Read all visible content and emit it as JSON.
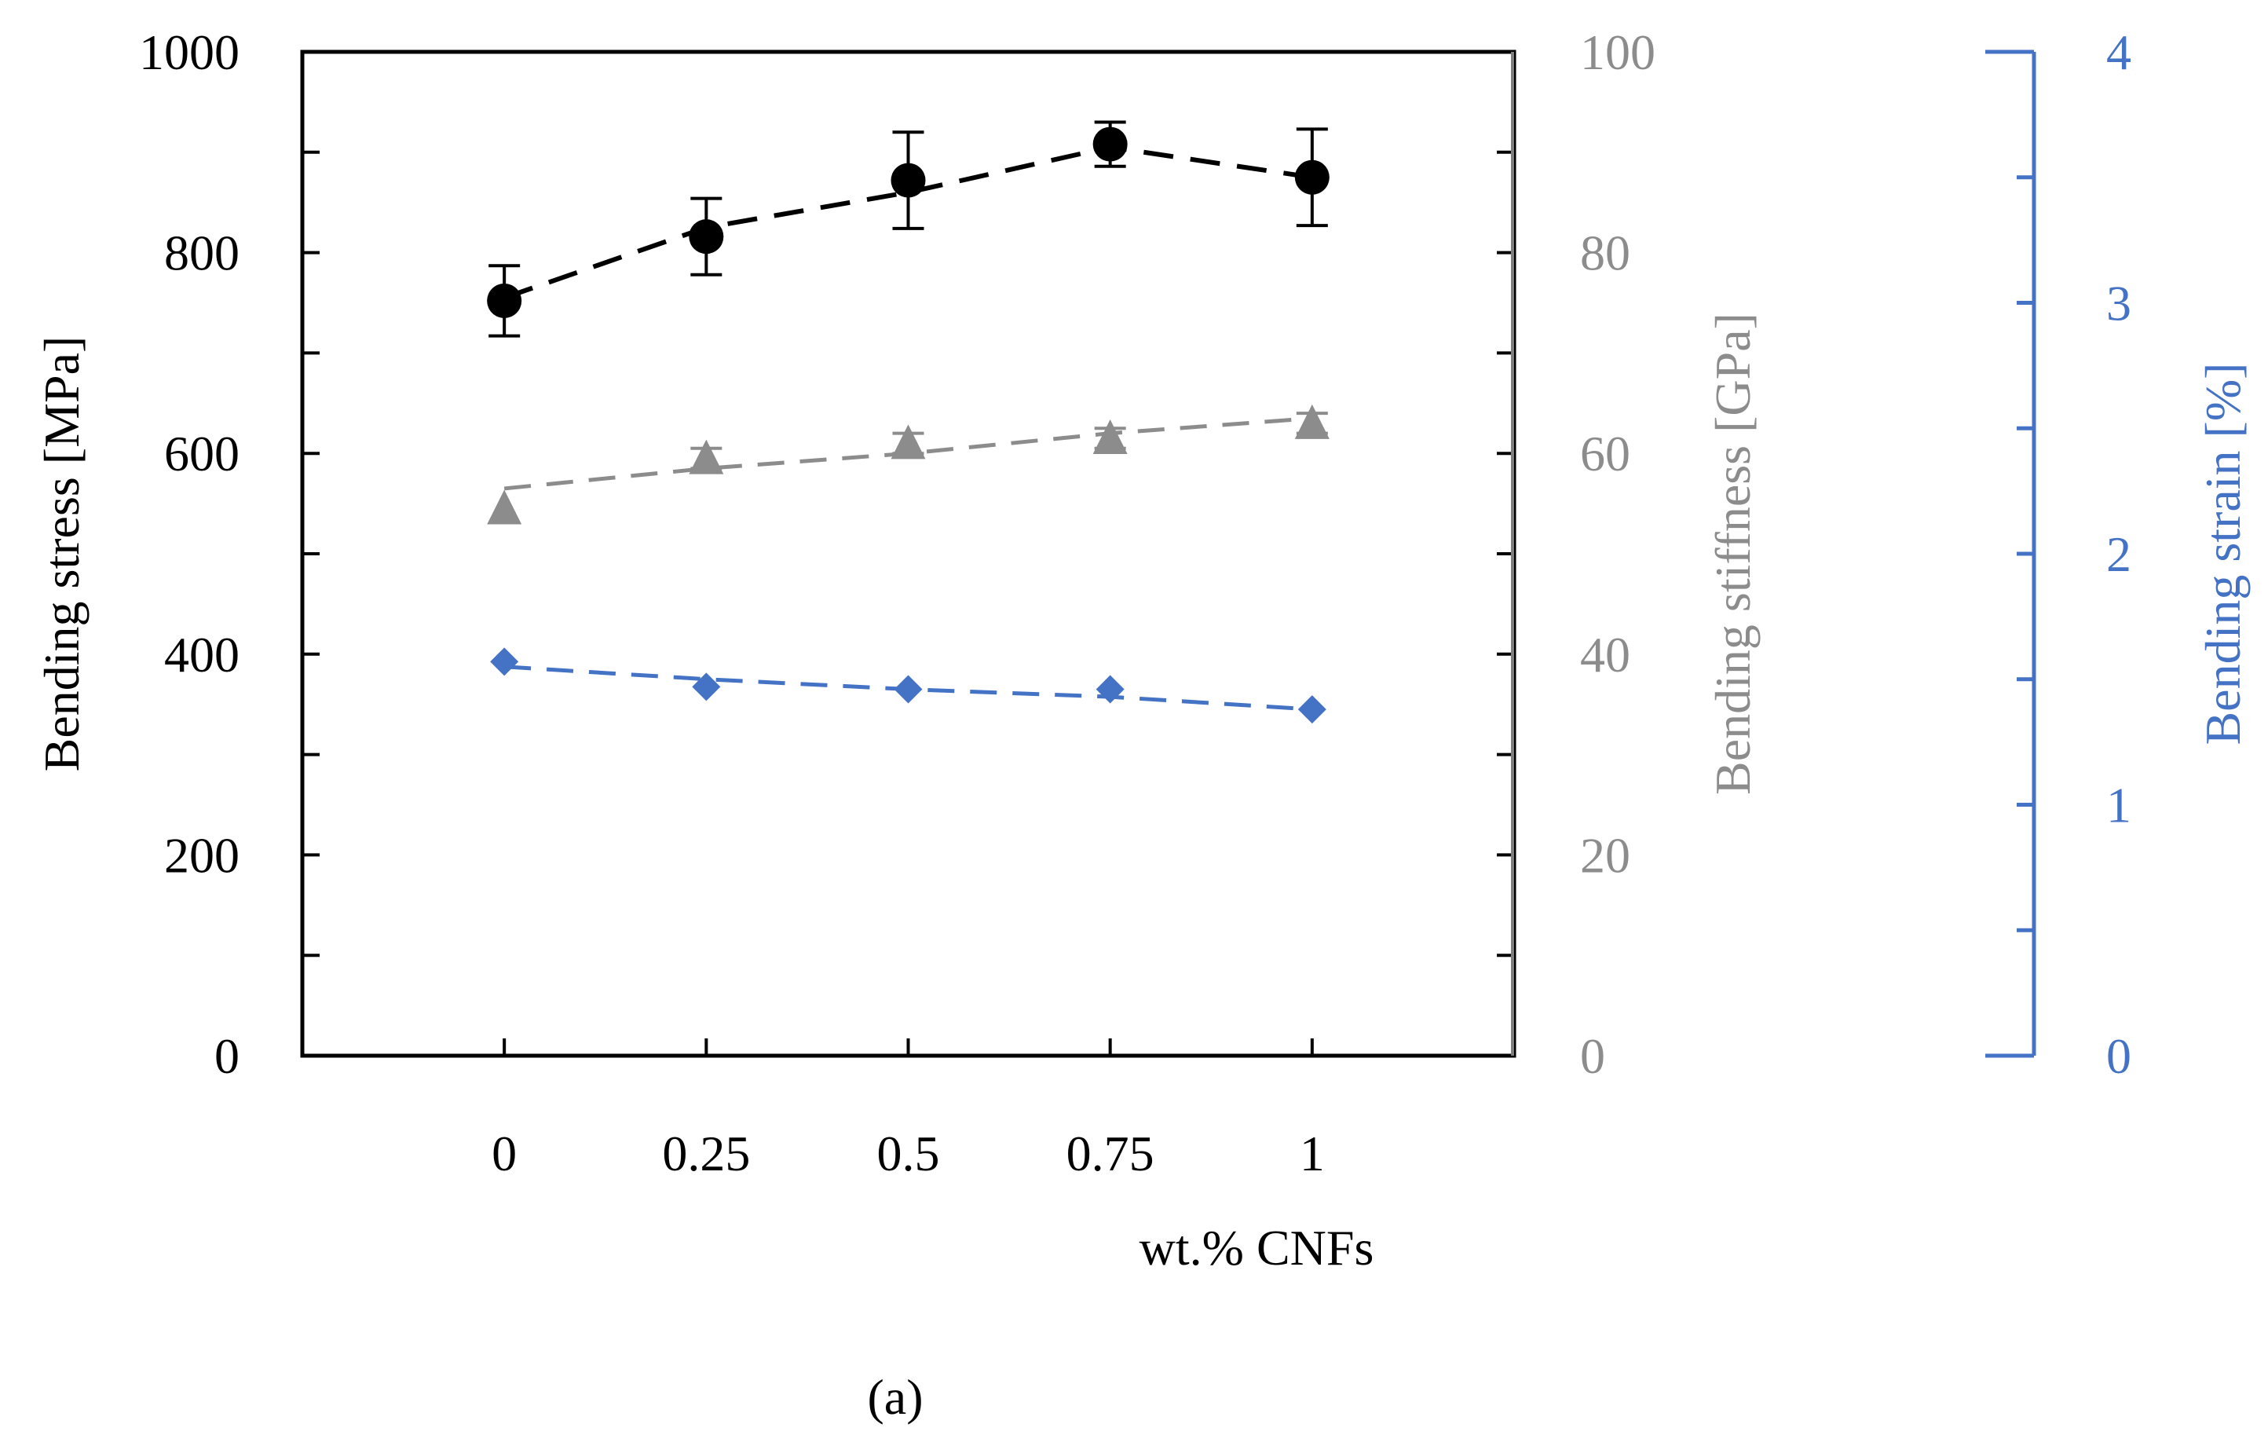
{
  "chart_data": {
    "type": "line",
    "subplot_label": "(a)",
    "x": [
      0,
      0.25,
      0.5,
      0.75,
      1
    ],
    "x_tick_labels": [
      "0",
      "0.25",
      "0.5",
      "0.75",
      "1"
    ],
    "xlabel": "wt.% CNFs",
    "axes": {
      "left": {
        "label": "Bending stress [MPa]",
        "range": [
          0,
          1000
        ],
        "ticks": [
          0,
          200,
          400,
          600,
          800,
          1000
        ],
        "tick_labels": [
          "0",
          "200",
          "400",
          "600",
          "800",
          "1000"
        ],
        "color": "#000000"
      },
      "right1": {
        "label": "Bending stiffness [GPa]",
        "range": [
          0,
          100
        ],
        "ticks": [
          0,
          20,
          40,
          60,
          80,
          100
        ],
        "tick_labels": [
          "0",
          "20",
          "40",
          "60",
          "80",
          "100"
        ],
        "color": "#8c8c8c"
      },
      "right2": {
        "label": "Bending strain [%]",
        "range": [
          0,
          4
        ],
        "ticks": [
          0,
          1,
          2,
          3,
          4
        ],
        "tick_labels": [
          "0",
          "1",
          "2",
          "3",
          "4"
        ],
        "color": "#4472c4"
      }
    },
    "series": [
      {
        "name": "Bending stress",
        "axis": "left",
        "marker": "circle",
        "color": "#000000",
        "values": [
          752,
          816,
          872,
          908,
          875
        ],
        "error": [
          35,
          38,
          48,
          22,
          48
        ],
        "trend": [
          755,
          825,
          860,
          905,
          875
        ]
      },
      {
        "name": "Bending stiffness",
        "axis": "right1",
        "marker": "triangle",
        "color": "#8c8c8c",
        "values": [
          54.5,
          59.5,
          61.0,
          61.5,
          63.0
        ],
        "error": [
          0,
          1.0,
          1.0,
          1.0,
          1.0
        ],
        "trend": [
          56.5,
          58.5,
          60.0,
          62.0,
          63.5
        ]
      },
      {
        "name": "Bending strain",
        "axis": "right2",
        "marker": "diamond",
        "color": "#4472c4",
        "values": [
          1.57,
          1.47,
          1.46,
          1.46,
          1.38
        ],
        "error": [
          0,
          0,
          0,
          0,
          0
        ],
        "trend": [
          1.55,
          1.5,
          1.46,
          1.43,
          1.38
        ]
      }
    ]
  }
}
